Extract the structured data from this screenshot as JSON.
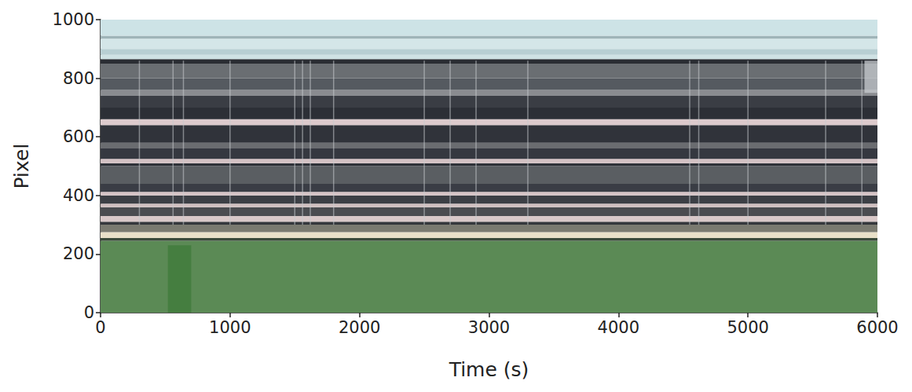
{
  "chart_data": {
    "type": "timestack",
    "x_label": "Time (s)",
    "y_label": "Pixel",
    "xlim": [
      0,
      6000
    ],
    "xticks": [
      0,
      1000,
      2000,
      3000,
      4000,
      5000,
      6000
    ],
    "ylim": [
      0,
      1000
    ],
    "yticks": [
      0,
      200,
      400,
      600,
      800,
      1000
    ],
    "grid": false,
    "bands": [
      {
        "from": 0,
        "to": 245,
        "color": "#5b8a55"
      },
      {
        "from": 245,
        "to": 255,
        "color": "#3a4a3a"
      },
      {
        "from": 255,
        "to": 275,
        "color": "#e8e0c8"
      },
      {
        "from": 275,
        "to": 300,
        "color": "#7a7a70"
      },
      {
        "from": 300,
        "to": 310,
        "color": "#34373c"
      },
      {
        "from": 310,
        "to": 330,
        "color": "#d8c8c8"
      },
      {
        "from": 330,
        "to": 360,
        "color": "#4a4c50"
      },
      {
        "from": 360,
        "to": 372,
        "color": "#d0c0c0"
      },
      {
        "from": 372,
        "to": 400,
        "color": "#3c3f45"
      },
      {
        "from": 400,
        "to": 412,
        "color": "#d6c4c6"
      },
      {
        "from": 412,
        "to": 440,
        "color": "#3a3d45"
      },
      {
        "from": 440,
        "to": 500,
        "color": "#5a5e62"
      },
      {
        "from": 500,
        "to": 510,
        "color": "#2e3138"
      },
      {
        "from": 510,
        "to": 525,
        "color": "#d4c2c4"
      },
      {
        "from": 525,
        "to": 560,
        "color": "#353840"
      },
      {
        "from": 560,
        "to": 580,
        "color": "#6a6c70"
      },
      {
        "from": 580,
        "to": 640,
        "color": "#30333a"
      },
      {
        "from": 640,
        "to": 660,
        "color": "#dccacc"
      },
      {
        "from": 660,
        "to": 700,
        "color": "#2c2f36"
      },
      {
        "from": 700,
        "to": 740,
        "color": "#3a3d44"
      },
      {
        "from": 740,
        "to": 760,
        "color": "#8a8c90"
      },
      {
        "from": 760,
        "to": 800,
        "color": "#555a60"
      },
      {
        "from": 800,
        "to": 850,
        "color": "#6a6e72"
      },
      {
        "from": 850,
        "to": 865,
        "color": "#2a2d33"
      },
      {
        "from": 865,
        "to": 880,
        "color": "#cfe2e4"
      },
      {
        "from": 880,
        "to": 900,
        "color": "#b8cfd3"
      },
      {
        "from": 900,
        "to": 935,
        "color": "#d4e6e8"
      },
      {
        "from": 935,
        "to": 945,
        "color": "#9fb4b8"
      },
      {
        "from": 945,
        "to": 1000,
        "color": "#cde3e6"
      }
    ],
    "patches": [
      {
        "x": [
          520,
          700
        ],
        "y": [
          0,
          230
        ],
        "color": "#3e7a3a"
      },
      {
        "x": [
          5900,
          6000
        ],
        "y": [
          750,
          860
        ],
        "color": "#c8ccd0"
      }
    ],
    "streaks": [
      {
        "x": 300,
        "y": [
          300,
          860
        ],
        "color": "#c8ccd0"
      },
      {
        "x": 560,
        "y": [
          300,
          860
        ],
        "color": "#c8ccd0"
      },
      {
        "x": 640,
        "y": [
          300,
          860
        ],
        "color": "#c8ccd0"
      },
      {
        "x": 1000,
        "y": [
          300,
          860
        ],
        "color": "#c8ccd0"
      },
      {
        "x": 1500,
        "y": [
          300,
          860
        ],
        "color": "#c8ccd0"
      },
      {
        "x": 1560,
        "y": [
          300,
          860
        ],
        "color": "#c8ccd0"
      },
      {
        "x": 1620,
        "y": [
          300,
          860
        ],
        "color": "#c8ccd0"
      },
      {
        "x": 1800,
        "y": [
          300,
          860
        ],
        "color": "#c8ccd0"
      },
      {
        "x": 2500,
        "y": [
          300,
          860
        ],
        "color": "#c8ccd0"
      },
      {
        "x": 2700,
        "y": [
          300,
          860
        ],
        "color": "#c8ccd0"
      },
      {
        "x": 2900,
        "y": [
          300,
          860
        ],
        "color": "#c8ccd0"
      },
      {
        "x": 3300,
        "y": [
          300,
          860
        ],
        "color": "#c8ccd0"
      },
      {
        "x": 4550,
        "y": [
          300,
          860
        ],
        "color": "#c8ccd0"
      },
      {
        "x": 4620,
        "y": [
          300,
          860
        ],
        "color": "#c8ccd0"
      },
      {
        "x": 5000,
        "y": [
          300,
          860
        ],
        "color": "#c8ccd0"
      },
      {
        "x": 5600,
        "y": [
          300,
          860
        ],
        "color": "#c8ccd0"
      },
      {
        "x": 5880,
        "y": [
          300,
          860
        ],
        "color": "#c8ccd0"
      }
    ]
  }
}
